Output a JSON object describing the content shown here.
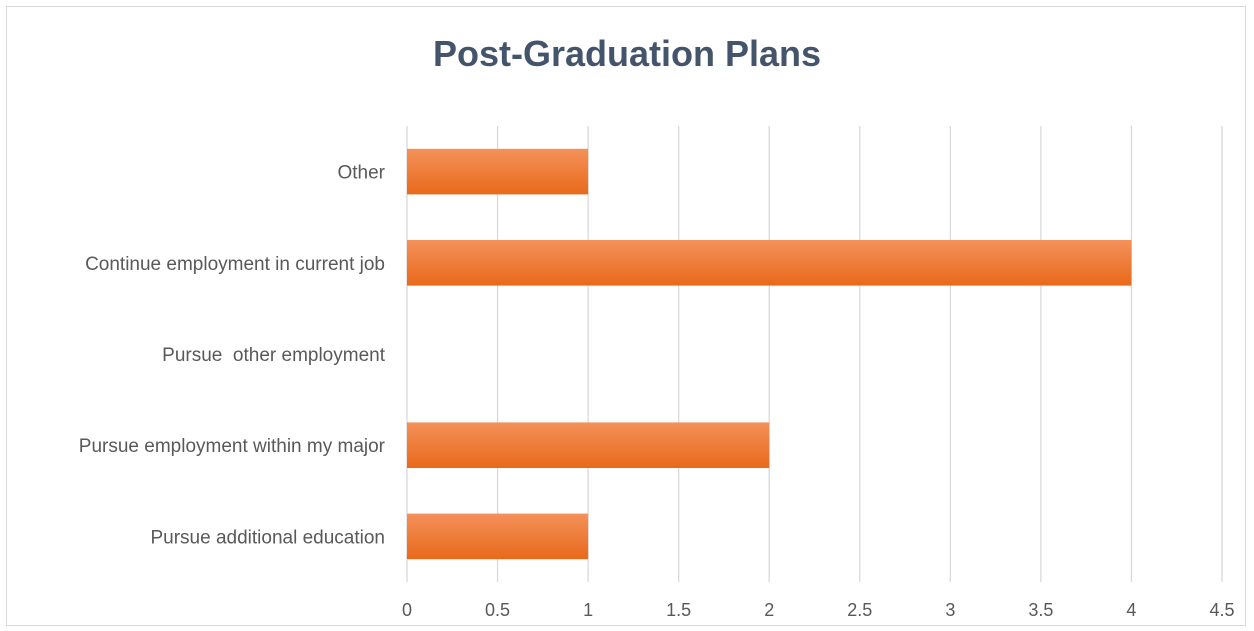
{
  "chart_data": {
    "type": "bar",
    "orientation": "horizontal",
    "title": "Post-Graduation Plans",
    "categories": [
      "Other",
      "Continue employment in current job",
      "Pursue  other employment",
      "Pursue employment within my major",
      "Pursue additional education"
    ],
    "values": [
      1,
      4,
      0,
      2,
      1
    ],
    "xlim": [
      0,
      4.5
    ],
    "xticks": [
      "0",
      "0.5",
      "1",
      "1.5",
      "2",
      "2.5",
      "3",
      "3.5",
      "4",
      "4.5"
    ],
    "xlabel": "",
    "ylabel": "",
    "grid": "vertical",
    "legend": "none",
    "bar_color": "#ed7d31"
  }
}
